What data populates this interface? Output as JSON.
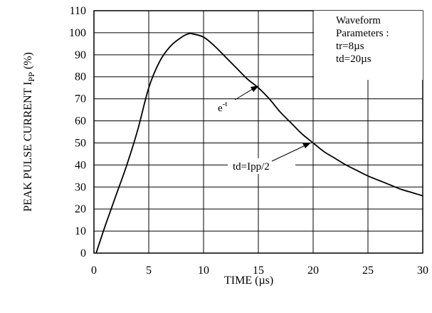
{
  "chart_data": {
    "type": "line",
    "xlabel": "TIME",
    "xlabel_unit": "(µs)",
    "ylabel": "PEAK PULSE CURRENT I",
    "ylabel_sub": "PP",
    "ylabel_unit": "(%)",
    "xlim": [
      0,
      30
    ],
    "ylim": [
      0,
      110
    ],
    "x_ticks": [
      0,
      5,
      10,
      15,
      20,
      25,
      30
    ],
    "y_ticks": [
      0,
      10,
      20,
      30,
      40,
      50,
      60,
      70,
      80,
      90,
      100,
      110
    ],
    "grid": true,
    "series": [
      {
        "x": [
          0.2,
          1,
          2,
          3,
          4,
          5,
          6,
          7,
          8,
          8.6,
          9,
          10,
          11,
          12,
          13,
          14,
          15,
          16,
          17,
          18,
          19,
          20,
          21,
          22,
          23,
          24,
          25,
          26,
          27,
          28,
          29,
          30
        ],
        "y": [
          0,
          12,
          26,
          40,
          56,
          75,
          87,
          94,
          98,
          99.5,
          99.5,
          98,
          94,
          89,
          84,
          79,
          75,
          70,
          64,
          59,
          54,
          50,
          46,
          43,
          40,
          37.5,
          35,
          33,
          31,
          29,
          27.5,
          26
        ]
      }
    ],
    "legend_box": {
      "lines": [
        "Waveform",
        "Parameters :",
        "tr=8µs",
        "td=20µs"
      ]
    },
    "annotations": [
      {
        "text": "e",
        "superscript": "-t",
        "point": [
          15,
          76
        ]
      },
      {
        "text": "td=Ipp/2",
        "point": [
          20,
          50
        ]
      }
    ]
  }
}
